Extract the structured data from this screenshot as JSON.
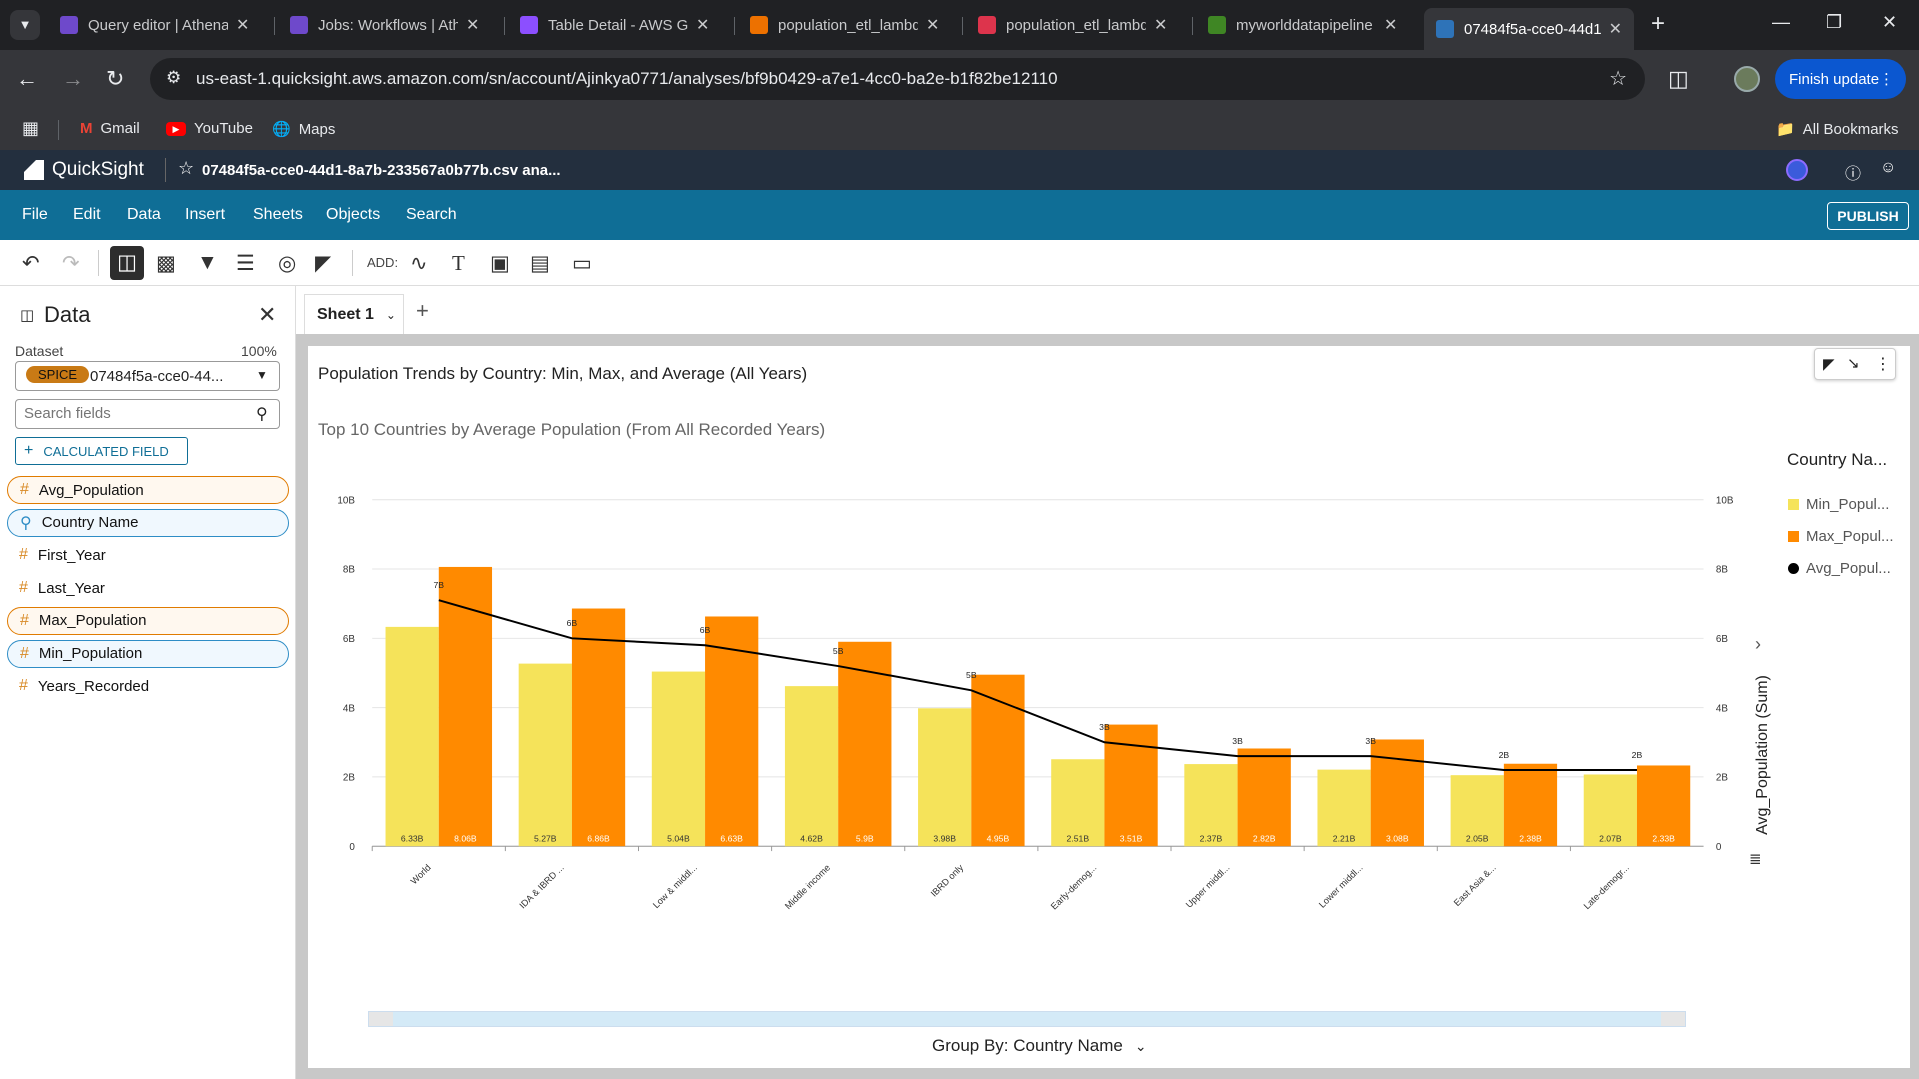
{
  "browser": {
    "tabs": [
      {
        "title": "Query editor | Athena",
        "color": "#6e49cb"
      },
      {
        "title": "Jobs: Workflows | Athena",
        "color": "#6e49cb"
      },
      {
        "title": "Table Detail - AWS Glue",
        "color": "#8c4fff"
      },
      {
        "title": "population_etl_lambda",
        "color": "#ed7100"
      },
      {
        "title": "population_etl_lambda",
        "color": "#dd344c"
      },
      {
        "title": "myworlddatapipeline",
        "color": "#3f8624"
      },
      {
        "title": "07484f5a-cce0-44d1",
        "color": "#2e73b8"
      }
    ],
    "url": "us-east-1.quicksight.aws.amazon.com/sn/account/Ajinkya0771/analyses/bf9b0429-a7e1-4cc0-ba2e-b1f82be12110",
    "finish_update": "Finish update",
    "bookmarks": [
      "Gmail",
      "YouTube",
      "Maps"
    ],
    "all_bookmarks": "All Bookmarks"
  },
  "quicksight": {
    "logo": "QuickSight",
    "analysis_title": "07484f5a-cce0-44d1-8a7b-233567a0b77b.csv ana...",
    "menu": [
      "File",
      "Edit",
      "Data",
      "Insert",
      "Sheets",
      "Objects",
      "Search"
    ],
    "publish": "PUBLISH",
    "add_label": "ADD:"
  },
  "sidebar": {
    "title": "Data",
    "dataset_label": "Dataset",
    "dataset_pct": "100%",
    "spice": "SPICE",
    "dataset_name": "07484f5a-cce0-44...",
    "search_placeholder": "Search fields",
    "calc_field": "CALCULATED FIELD",
    "fields": [
      {
        "name": "Avg_Population",
        "style": "orange",
        "icon": "hash"
      },
      {
        "name": "Country Name",
        "style": "blue",
        "icon": "pin"
      },
      {
        "name": "First_Year",
        "style": "none",
        "icon": "hash"
      },
      {
        "name": "Last_Year",
        "style": "none",
        "icon": "hash"
      },
      {
        "name": "Max_Population",
        "style": "orange",
        "icon": "hash"
      },
      {
        "name": "Min_Population",
        "style": "blue",
        "icon": "hash"
      },
      {
        "name": "Years_Recorded",
        "style": "none",
        "icon": "hash"
      }
    ]
  },
  "sheet": {
    "tab": "Sheet 1"
  },
  "visual": {
    "title": "Population Trends by Country: Min, Max, and Average (All Years)",
    "subtitle": "Top 10 Countries by Average Population (From All Recorded Years)",
    "legend_title": "Country Na...",
    "legend": [
      "Min_Popul...",
      "Max_Popul...",
      "Avg_Popul..."
    ],
    "right_axis_label": "Avg_Population (Sum)",
    "group_by": "Group By: Country Name"
  },
  "chart_data": {
    "type": "bar",
    "categories": [
      "World",
      "IDA & IBRD ...",
      "Low & middl...",
      "Middle income",
      "IBRD only",
      "Early-demog...",
      "Upper middl...",
      "Lower middl...",
      "East Asia &...",
      "Late-demogr..."
    ],
    "series": [
      {
        "name": "Min_Popul...",
        "type": "bar",
        "color": "#f5e35a",
        "values": [
          6.33,
          5.27,
          5.04,
          4.62,
          3.98,
          2.51,
          2.37,
          2.21,
          2.05,
          2.07
        ],
        "labels": [
          "6.33B",
          "5.27B",
          "5.04B",
          "4.62B",
          "3.98B",
          "2.51B",
          "2.37B",
          "2.21B",
          "2.05B",
          "2.07B"
        ]
      },
      {
        "name": "Max_Popul...",
        "type": "bar",
        "color": "#ff8a00",
        "values": [
          8.06,
          6.86,
          6.63,
          5.9,
          4.95,
          3.51,
          2.82,
          3.08,
          2.38,
          2.33
        ],
        "labels": [
          "8.06B",
          "6.86B",
          "6.63B",
          "5.9B",
          "4.95B",
          "3.51B",
          "2.82B",
          "3.08B",
          "2.38B",
          "2.33B"
        ]
      },
      {
        "name": "Avg_Popul...",
        "type": "line",
        "color": "#000000",
        "values": [
          7.1,
          6.0,
          5.8,
          5.2,
          4.5,
          3.0,
          2.6,
          2.6,
          2.2,
          2.2
        ],
        "labels": [
          "7B",
          "6B",
          "6B",
          "5B",
          "5B",
          "3B",
          "3B",
          "3B",
          "2B",
          "2B"
        ]
      }
    ],
    "yticks": [
      "0",
      "2B",
      "4B",
      "6B",
      "8B",
      "10B"
    ],
    "ylim": [
      0,
      10
    ],
    "legend_position": "right"
  }
}
